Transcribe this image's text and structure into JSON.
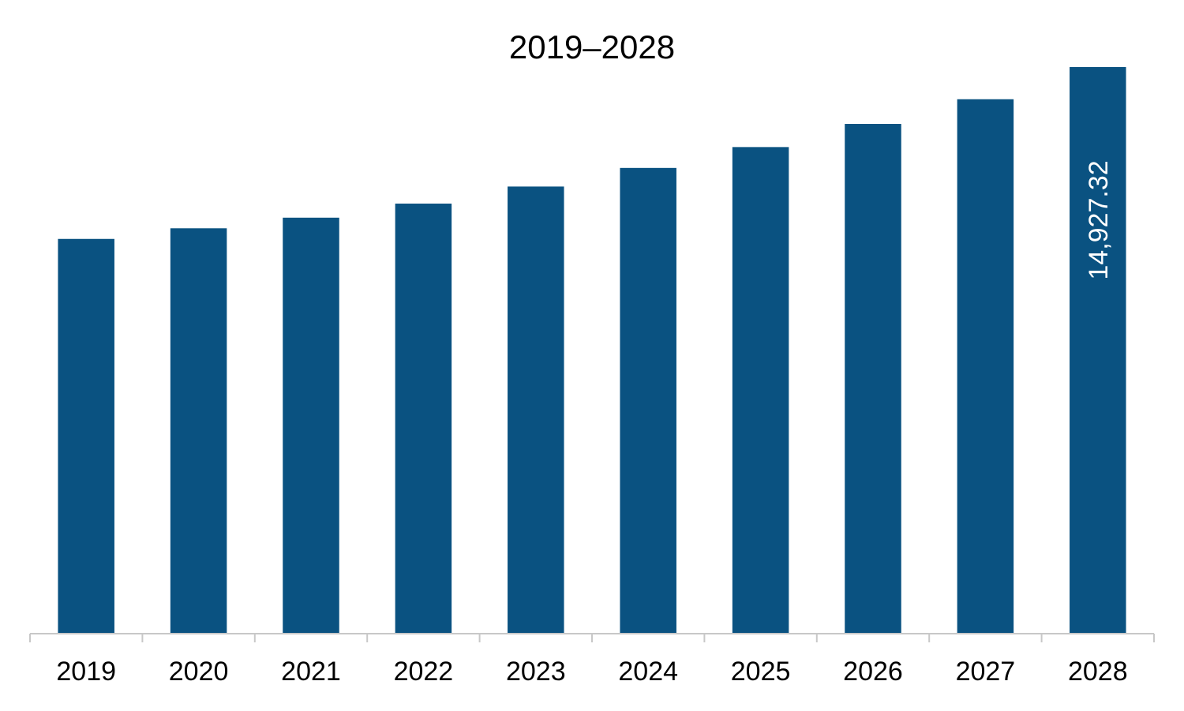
{
  "chart_data": {
    "type": "bar",
    "title": "2019–2028",
    "xlabel": "",
    "ylabel": "",
    "categories": [
      "2019",
      "2020",
      "2021",
      "2022",
      "2023",
      "2024",
      "2025",
      "2026",
      "2027",
      "2028"
    ],
    "values": [
      10400,
      10680,
      10960,
      11330,
      11780,
      12270,
      12820,
      13430,
      14080,
      14927.32
    ],
    "data_labels": [
      "",
      "",
      "",
      "",
      "",
      "",
      "",
      "",
      "",
      "14,927.32"
    ],
    "ylim": [
      0,
      14927.32
    ],
    "grid": false,
    "legend": "none",
    "colors": {
      "bar": "#0a5281",
      "axis": "#c8c8c8",
      "text": "#000000",
      "data_label": "#ffffff"
    }
  }
}
